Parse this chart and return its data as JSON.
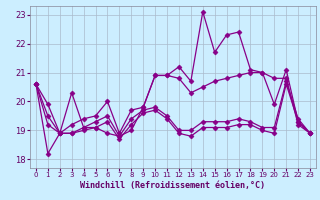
{
  "xlabel": "Windchill (Refroidissement éolien,°C)",
  "bg_color": "#cceeff",
  "line_color": "#880088",
  "marker": "D",
  "markersize": 2.5,
  "linewidth": 0.9,
  "xlim": [
    -0.5,
    23.5
  ],
  "ylim": [
    17.7,
    23.3
  ],
  "yticks": [
    18,
    19,
    20,
    21,
    22,
    23
  ],
  "xticks": [
    0,
    1,
    2,
    3,
    4,
    5,
    6,
    7,
    8,
    9,
    10,
    11,
    12,
    13,
    14,
    15,
    16,
    17,
    18,
    19,
    20,
    21,
    22,
    23
  ],
  "grid_color": "#aabbcc",
  "series": [
    [
      20.6,
      18.2,
      18.9,
      20.3,
      19.1,
      19.1,
      18.9,
      18.8,
      19.0,
      19.8,
      20.9,
      20.9,
      21.2,
      20.7,
      23.1,
      21.7,
      22.3,
      22.4,
      21.1,
      21.0,
      19.9,
      21.1,
      19.3,
      18.9
    ],
    [
      20.6,
      19.9,
      18.9,
      19.2,
      19.4,
      19.5,
      20.0,
      18.9,
      19.7,
      19.8,
      20.9,
      20.9,
      20.8,
      20.3,
      20.5,
      20.7,
      20.8,
      20.9,
      21.0,
      21.0,
      20.8,
      20.8,
      19.2,
      18.9
    ],
    [
      20.6,
      19.5,
      18.9,
      18.9,
      19.1,
      19.3,
      19.5,
      18.8,
      19.4,
      19.7,
      19.8,
      19.5,
      19.0,
      19.0,
      19.3,
      19.3,
      19.3,
      19.4,
      19.3,
      19.1,
      19.1,
      20.7,
      19.4,
      18.9
    ],
    [
      20.6,
      19.2,
      18.9,
      18.9,
      19.0,
      19.1,
      19.3,
      18.7,
      19.2,
      19.6,
      19.7,
      19.4,
      18.9,
      18.8,
      19.1,
      19.1,
      19.1,
      19.2,
      19.2,
      19.0,
      18.9,
      20.6,
      19.3,
      18.9
    ]
  ]
}
